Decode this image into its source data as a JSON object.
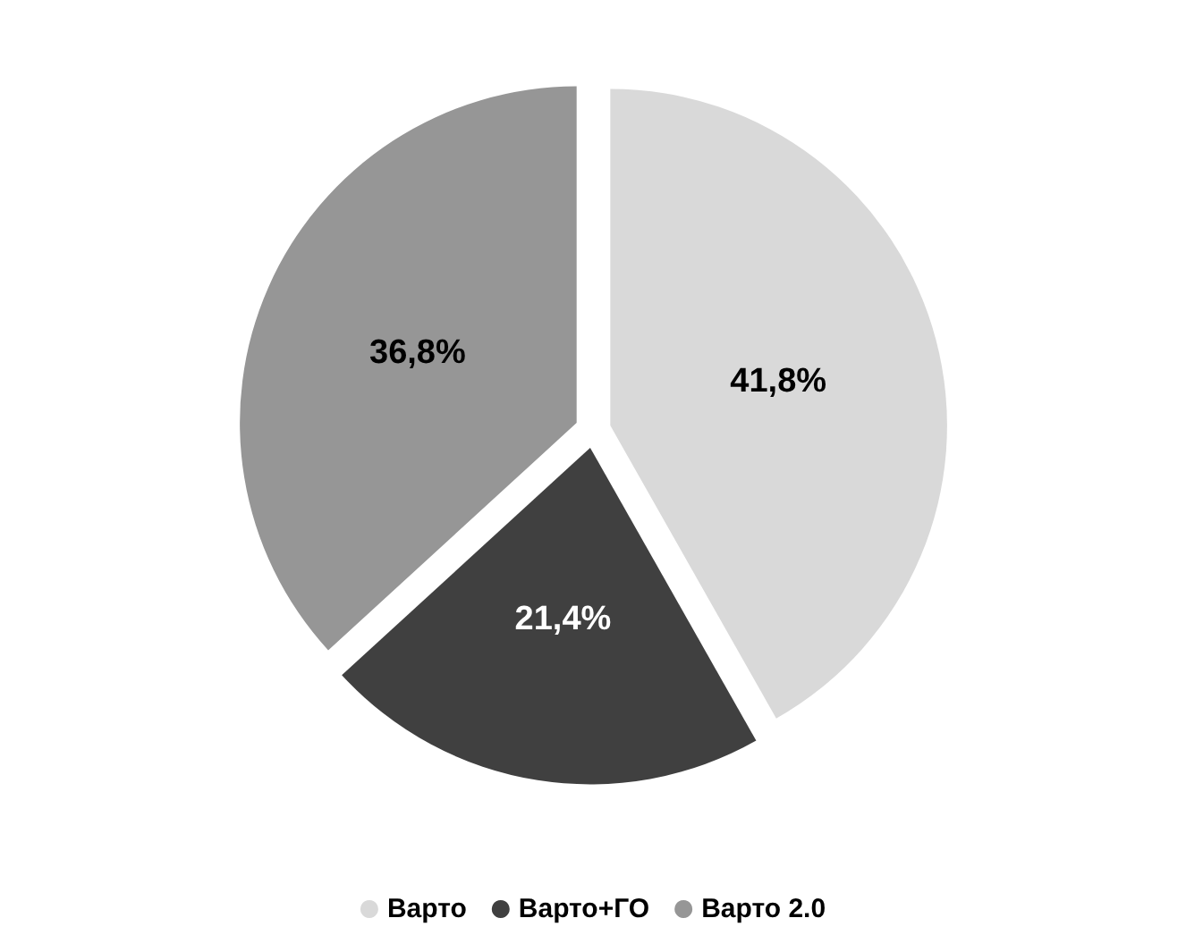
{
  "chart_data": {
    "type": "pie",
    "categories": [
      "Варто",
      "Варто+ГО",
      "Варто 2.0"
    ],
    "values": [
      41.8,
      21.4,
      36.8
    ],
    "colors": [
      "#d9d9d9",
      "#404040",
      "#969696"
    ],
    "value_labels": [
      "41,8%",
      "21,4%",
      "36,8%"
    ],
    "legend": "bottom"
  }
}
